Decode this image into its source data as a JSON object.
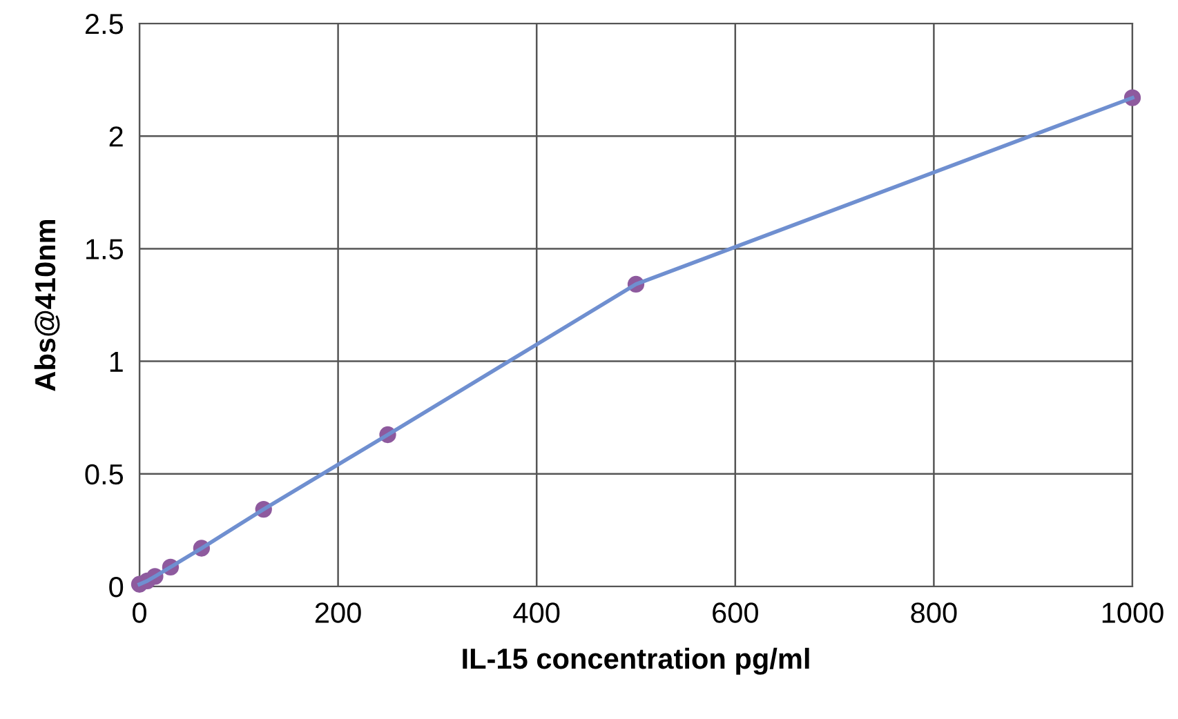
{
  "chart_data": {
    "type": "line",
    "xlabel": "IL-15 concentration pg/ml",
    "ylabel": "Abs@410nm",
    "x": [
      0,
      7.8,
      15.6,
      31.25,
      62.5,
      125,
      250,
      500,
      1000
    ],
    "series": [
      {
        "color": "#6f8fd0",
        "values": [
          0.01,
          0.025,
          0.045,
          0.086,
          0.17,
          0.343,
          0.674,
          1.342,
          2.17
        ]
      },
      {
        "type": "scatter",
        "color": "#8e5a9e",
        "values": [
          0.01,
          0.025,
          0.045,
          0.086,
          0.17,
          0.343,
          0.674,
          1.342,
          2.17
        ],
        "marker": "circle"
      }
    ],
    "xlim": [
      0,
      1000
    ],
    "xticks": [
      0,
      200,
      400,
      600,
      800,
      1000
    ],
    "ylim": [
      0,
      2.5
    ],
    "yticks": [
      0,
      0.5,
      1,
      1.5,
      2,
      2.5
    ],
    "grid": true
  }
}
